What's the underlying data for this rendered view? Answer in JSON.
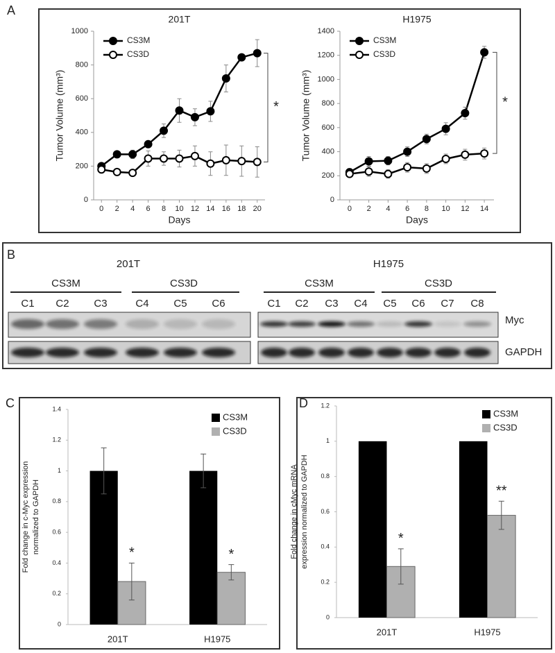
{
  "panel_labels": [
    "A",
    "B",
    "C",
    "D"
  ],
  "blot": {
    "groups": [
      {
        "title": "201T",
        "conditions": [
          {
            "name": "CS3M",
            "lanes": [
              "C1",
              "C2",
              "C3"
            ]
          },
          {
            "name": "CS3D",
            "lanes": [
              "C4",
              "C5",
              "C6"
            ]
          }
        ]
      },
      {
        "title": "H1975",
        "conditions": [
          {
            "name": "CS3M",
            "lanes": [
              "C1",
              "C2",
              "C3",
              "C4"
            ]
          },
          {
            "name": "CS3D",
            "lanes": [
              "C5",
              "C6",
              "C7",
              "C8"
            ]
          }
        ]
      }
    ],
    "rows": [
      "Myc",
      "GAPDH"
    ]
  },
  "chart_data": [
    {
      "type": "line",
      "title": "201T",
      "xlabel": "Days",
      "ylabel": "Tumor Volume (mm³)",
      "x": [
        0,
        2,
        4,
        6,
        8,
        10,
        12,
        14,
        16,
        18,
        20
      ],
      "xlim": [
        -1,
        21
      ],
      "xticks": [
        0,
        2,
        4,
        6,
        8,
        10,
        12,
        14,
        16,
        18,
        20
      ],
      "ylim": [
        0,
        1000
      ],
      "yticks": [
        0,
        200,
        400,
        600,
        800,
        1000
      ],
      "legend": "upper left",
      "annotation": "*",
      "series": [
        {
          "name": "CS3M",
          "color": "#000000",
          "marker_fill": "#000000",
          "values": [
            200,
            270,
            270,
            330,
            410,
            530,
            490,
            525,
            720,
            845,
            870
          ],
          "errors": [
            15,
            20,
            25,
            20,
            40,
            70,
            50,
            60,
            80,
            10,
            80
          ]
        },
        {
          "name": "CS3D",
          "color": "#000000",
          "marker_fill": "#ffffff",
          "values": [
            180,
            165,
            160,
            245,
            245,
            245,
            260,
            215,
            235,
            230,
            225
          ],
          "errors": [
            20,
            20,
            20,
            45,
            40,
            50,
            60,
            70,
            90,
            90,
            90
          ]
        }
      ]
    },
    {
      "type": "line",
      "title": "H1975",
      "xlabel": "Days",
      "ylabel": "Tumor Volume (mm³)",
      "x": [
        0,
        2,
        4,
        6,
        8,
        10,
        12,
        14
      ],
      "xlim": [
        -1,
        15
      ],
      "xticks": [
        0,
        2,
        4,
        6,
        8,
        10,
        12,
        14
      ],
      "ylim": [
        0,
        1400
      ],
      "yticks": [
        0,
        200,
        400,
        600,
        800,
        1000,
        1200,
        1400
      ],
      "legend": "upper left",
      "annotation": "*",
      "series": [
        {
          "name": "CS3M",
          "color": "#000000",
          "marker_fill": "#000000",
          "values": [
            230,
            320,
            325,
            400,
            505,
            590,
            720,
            1225
          ],
          "errors": [
            30,
            40,
            35,
            40,
            40,
            50,
            50,
            50
          ]
        },
        {
          "name": "CS3D",
          "color": "#000000",
          "marker_fill": "#ffffff",
          "values": [
            215,
            235,
            215,
            270,
            260,
            340,
            375,
            385
          ],
          "errors": [
            25,
            40,
            35,
            40,
            40,
            40,
            45,
            45
          ]
        }
      ]
    },
    {
      "type": "bar",
      "ylabel": [
        "Fold change in c-Myc expression",
        "normalized to GAPDH"
      ],
      "categories": [
        "201T",
        "H1975"
      ],
      "ylim": [
        0,
        1.4
      ],
      "yticks": [
        0,
        0.2,
        0.4,
        0.6,
        0.8,
        1,
        1.2,
        1.4
      ],
      "legend": "upper right",
      "series": [
        {
          "name": "CS3M",
          "color": "#000000",
          "values": [
            1,
            1
          ],
          "errors": [
            0.15,
            0.11
          ]
        },
        {
          "name": "CS3D",
          "color": "#b0b0b0",
          "values": [
            0.28,
            0.34
          ],
          "errors": [
            0.12,
            0.05
          ],
          "annotations": [
            "*",
            "*"
          ]
        }
      ]
    },
    {
      "type": "bar",
      "ylabel": [
        "Fold change in cMyc mRNA",
        "expression normalized to GAPDH"
      ],
      "categories": [
        "201T",
        "H1975"
      ],
      "ylim": [
        0,
        1.2
      ],
      "yticks": [
        0,
        0.2,
        0.4,
        0.6,
        0.8,
        1,
        1.2
      ],
      "legend": "upper right",
      "series": [
        {
          "name": "CS3M",
          "color": "#000000",
          "values": [
            1,
            1
          ]
        },
        {
          "name": "CS3D",
          "color": "#b0b0b0",
          "values": [
            0.29,
            0.58
          ],
          "errors": [
            0.1,
            0.08
          ],
          "annotations": [
            "*",
            "**"
          ]
        }
      ]
    }
  ]
}
